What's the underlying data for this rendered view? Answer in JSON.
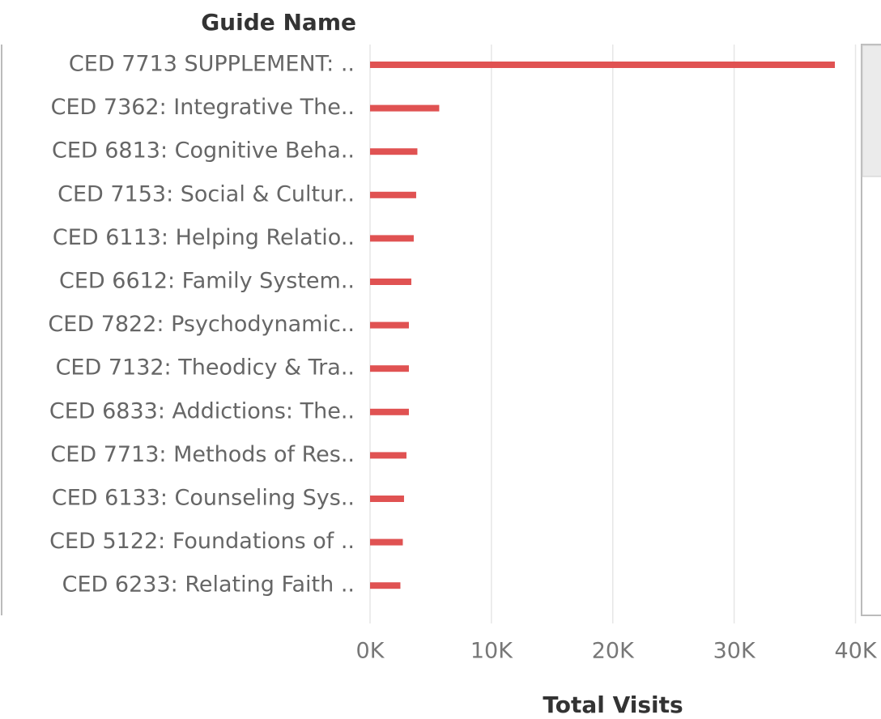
{
  "chart_data": {
    "type": "hbar",
    "category_axis_title": "Guide Name",
    "x_axis_title": "Total Visits",
    "categories": [
      "CED 7713 SUPPLEMENT: ..",
      "CED 7362: Integrative The..",
      "CED 6813: Cognitive Beha..",
      "CED 7153: Social & Cultur..",
      "CED 6113: Helping Relatio..",
      "CED 6612: Family System..",
      "CED 7822: Psychodynamic..",
      "CED 7132: Theodicy & Tra..",
      "CED 6833: Addictions: The..",
      "CED 7713: Methods of Res..",
      "CED 6133: Counseling Sys..",
      "CED 5122: Foundations of ..",
      "CED 6233: Relating Faith .."
    ],
    "values": [
      38300,
      5700,
      3900,
      3800,
      3600,
      3400,
      3200,
      3200,
      3200,
      3000,
      2800,
      2700,
      2500
    ],
    "color": "#e05252",
    "xlim": [
      0,
      40300
    ],
    "xticks": [
      {
        "value": 0,
        "label": "0K"
      },
      {
        "value": 10000,
        "label": "10K"
      },
      {
        "value": 20000,
        "label": "20K"
      },
      {
        "value": 30000,
        "label": "30K"
      },
      {
        "value": 40000,
        "label": "40K"
      }
    ],
    "grid": true
  }
}
